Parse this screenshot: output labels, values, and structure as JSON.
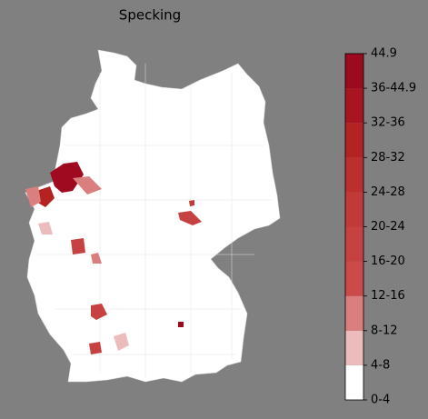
{
  "title": "Specking",
  "colorbar": {
    "labels": [
      "0-4",
      "4-8",
      "8-12",
      "12-16",
      "16-20",
      "20-24",
      "24-28",
      "28-32",
      "32-36",
      "36-44.9",
      "44.9"
    ],
    "colors": [
      "#ffffff",
      "#ecbcbc",
      "#da7f7f",
      "#cb4a4a",
      "#c64242",
      "#c13939",
      "#bb2f2f",
      "#b42323",
      "#a91423",
      "#9b0a1e"
    ]
  }
}
